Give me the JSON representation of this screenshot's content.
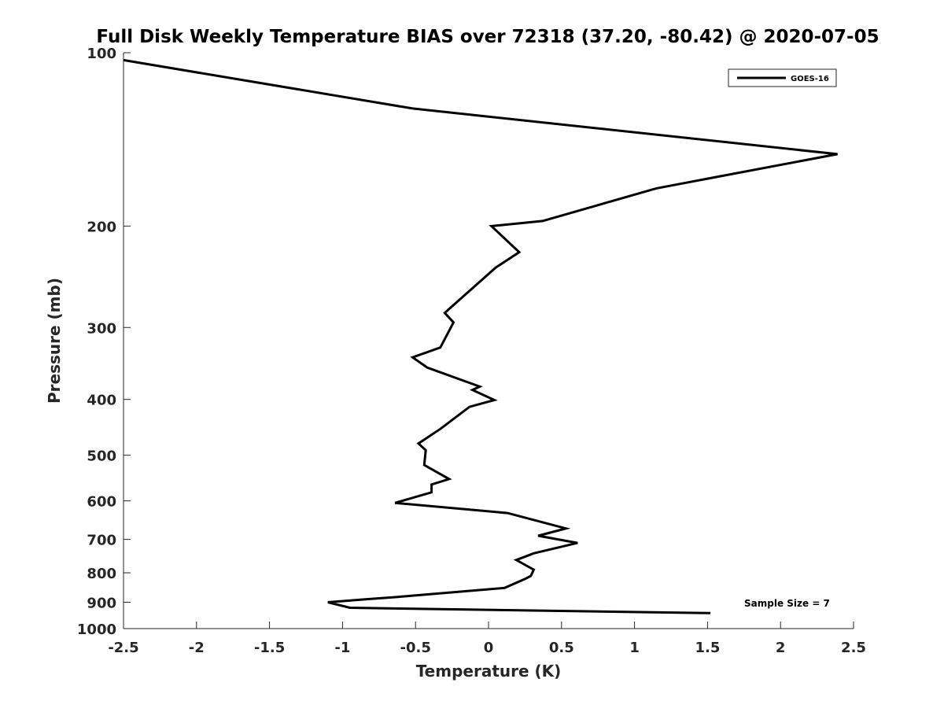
{
  "chart_data": {
    "type": "line",
    "title": "Full Disk Weekly Temperature BIAS over 72318 (37.20, -80.42) @ 2020-07-05",
    "xlabel": "Temperature (K)",
    "ylabel": "Pressure (mb)",
    "xlim": [
      -2.5,
      2.5
    ],
    "ylim": [
      100,
      1000
    ],
    "y_scale": "log",
    "y_reversed": true,
    "x_ticks": [
      -2.5,
      -2,
      -1.5,
      -1,
      -0.5,
      0,
      0.5,
      1,
      1.5,
      2,
      2.5
    ],
    "x_tick_labels": [
      "-2.5",
      "-2",
      "-1.5",
      "-1",
      "-0.5",
      "0",
      "0.5",
      "1",
      "1.5",
      "2",
      "2.5"
    ],
    "y_ticks": [
      100,
      200,
      300,
      400,
      500,
      600,
      700,
      800,
      900,
      1000
    ],
    "y_tick_labels": [
      "100",
      "200",
      "300",
      "400",
      "500",
      "600",
      "700",
      "800",
      "900",
      "1000"
    ],
    "grid": false,
    "legend_position": "top-right",
    "annotation": "Sample Size = 7",
    "series": [
      {
        "name": "GOES-16",
        "color": "#000000",
        "x": [
          -2.5,
          -0.52,
          2.39,
          1.15,
          0.37,
          0.02,
          0.21,
          0.05,
          -0.3,
          -0.24,
          -0.33,
          -0.52,
          -0.42,
          -0.06,
          -0.11,
          0.04,
          -0.13,
          -0.33,
          -0.48,
          -0.43,
          -0.44,
          -0.27,
          -0.39,
          -0.39,
          -0.64,
          0.13,
          0.53,
          0.34,
          0.61,
          0.31,
          0.19,
          0.31,
          0.29,
          0.25,
          0.11,
          -0.6,
          -0.86,
          -1.1,
          -0.95,
          1.52
        ],
        "y": [
          103,
          125,
          150,
          172,
          196,
          200,
          222,
          236,
          283,
          294,
          325,
          338,
          352,
          380,
          385,
          401,
          412,
          450,
          477,
          490,
          520,
          550,
          562,
          580,
          605,
          630,
          670,
          690,
          710,
          740,
          760,
          790,
          810,
          820,
          850,
          880,
          890,
          900,
          920,
          940
        ]
      }
    ]
  }
}
